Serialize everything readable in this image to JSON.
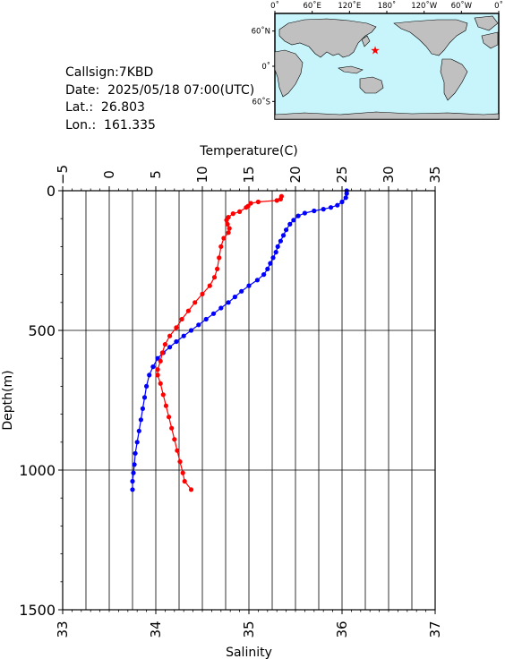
{
  "station": {
    "callsign": "Callsign:7KBD",
    "date": "Date:  2025/05/18 07:00(UTC)",
    "lat": "Lat.:  26.803",
    "lon": "Lon.:  161.335"
  },
  "map": {
    "lon_ticks": [
      "0˚",
      "60˚E",
      "120˚E",
      "180˚",
      "120˚W",
      "60˚W",
      "0˚"
    ],
    "lat_ticks": [
      "60˚N",
      "0˚",
      "60˚S"
    ],
    "ocean_color": "#c8f5fb",
    "land_color": "#c0c0c0",
    "marker": {
      "lon": 161.335,
      "lat": 26.803,
      "symbol": "star",
      "color": "#ff0000"
    }
  },
  "chart_data": {
    "type": "line",
    "top_axis_label": "Temperature(C)",
    "bottom_axis_label": "Salinity",
    "y_axis_label": "Depth(m)",
    "temperature_ticks": [
      "−5",
      "0",
      "5",
      "10",
      "15",
      "20",
      "25",
      "30",
      "35"
    ],
    "salinity_ticks": [
      "33",
      "34",
      "35",
      "36",
      "37"
    ],
    "depth_ticks": [
      "0",
      "500",
      "1000",
      "1500"
    ],
    "temperature_range": [
      -5,
      35
    ],
    "salinity_range": [
      33,
      37
    ],
    "depth_range": [
      0,
      1500
    ],
    "grid": true,
    "series": [
      {
        "axis": "temperature",
        "color": "#0000ff",
        "points": [
          [
            25.5,
            0
          ],
          [
            25.5,
            10
          ],
          [
            25.4,
            25
          ],
          [
            25.0,
            40
          ],
          [
            24.5,
            52
          ],
          [
            23.8,
            60
          ],
          [
            23.0,
            66
          ],
          [
            22.0,
            72
          ],
          [
            21.0,
            80
          ],
          [
            20.3,
            90
          ],
          [
            19.8,
            105
          ],
          [
            19.4,
            120
          ],
          [
            19.0,
            140
          ],
          [
            18.7,
            160
          ],
          [
            18.4,
            180
          ],
          [
            18.1,
            200
          ],
          [
            17.9,
            220
          ],
          [
            17.6,
            240
          ],
          [
            17.3,
            260
          ],
          [
            17.0,
            280
          ],
          [
            16.6,
            300
          ],
          [
            15.9,
            320
          ],
          [
            15.0,
            340
          ],
          [
            14.2,
            360
          ],
          [
            13.5,
            380
          ],
          [
            12.8,
            400
          ],
          [
            12.0,
            420
          ],
          [
            11.2,
            440
          ],
          [
            10.4,
            460
          ],
          [
            9.6,
            480
          ],
          [
            8.8,
            500
          ],
          [
            8.0,
            520
          ],
          [
            7.2,
            540
          ],
          [
            6.5,
            560
          ],
          [
            5.8,
            580
          ],
          [
            5.2,
            600
          ],
          [
            4.7,
            630
          ],
          [
            4.3,
            660
          ],
          [
            4.0,
            700
          ],
          [
            3.8,
            740
          ],
          [
            3.6,
            780
          ],
          [
            3.4,
            820
          ],
          [
            3.2,
            860
          ],
          [
            3.0,
            900
          ],
          [
            2.8,
            940
          ],
          [
            2.7,
            980
          ],
          [
            2.6,
            1010
          ],
          [
            2.5,
            1040
          ],
          [
            2.5,
            1070
          ]
        ]
      },
      {
        "axis": "salinity",
        "color": "#ff0000",
        "points": [
          [
            35.35,
            20
          ],
          [
            35.34,
            30
          ],
          [
            35.3,
            35
          ],
          [
            35.1,
            40
          ],
          [
            35.02,
            45
          ],
          [
            34.99,
            55
          ],
          [
            34.97,
            60
          ],
          [
            34.9,
            75
          ],
          [
            34.83,
            82
          ],
          [
            34.78,
            95
          ],
          [
            34.76,
            105
          ],
          [
            34.77,
            120
          ],
          [
            34.79,
            135
          ],
          [
            34.78,
            150
          ],
          [
            34.73,
            170
          ],
          [
            34.7,
            200
          ],
          [
            34.68,
            240
          ],
          [
            34.66,
            280
          ],
          [
            34.63,
            310
          ],
          [
            34.58,
            340
          ],
          [
            34.5,
            370
          ],
          [
            34.42,
            400
          ],
          [
            34.35,
            430
          ],
          [
            34.28,
            460
          ],
          [
            34.22,
            490
          ],
          [
            34.15,
            520
          ],
          [
            34.1,
            550
          ],
          [
            34.07,
            580
          ],
          [
            34.05,
            610
          ],
          [
            34.02,
            640
          ],
          [
            34.02,
            660
          ],
          [
            34.05,
            690
          ],
          [
            34.08,
            730
          ],
          [
            34.11,
            770
          ],
          [
            34.14,
            810
          ],
          [
            34.17,
            850
          ],
          [
            34.2,
            890
          ],
          [
            34.23,
            930
          ],
          [
            34.26,
            970
          ],
          [
            34.29,
            1010
          ],
          [
            34.31,
            1040
          ],
          [
            34.38,
            1070
          ]
        ]
      }
    ]
  }
}
